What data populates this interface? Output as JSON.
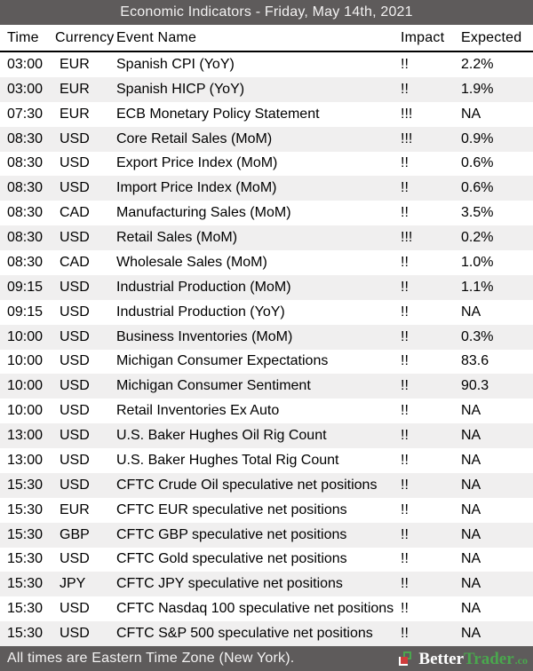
{
  "header": {
    "title": "Economic Indicators - Friday, May 14th, 2021"
  },
  "colors": {
    "bar_background": "#5e5b5b",
    "row_alt_background": "#f0efef",
    "header_divider": "#000000",
    "logo_green": "#4aa74e",
    "logo_red": "#cf3c3c"
  },
  "table": {
    "columns": [
      "Time",
      "Currency",
      "Event Name",
      "Impact",
      "Expected"
    ],
    "rows": [
      {
        "time": "03:00",
        "currency": "EUR",
        "event": "Spanish CPI (YoY)",
        "impact": "!!",
        "expected": "2.2%"
      },
      {
        "time": "03:00",
        "currency": "EUR",
        "event": "Spanish HICP (YoY)",
        "impact": "!!",
        "expected": "1.9%"
      },
      {
        "time": "07:30",
        "currency": "EUR",
        "event": "ECB Monetary Policy Statement",
        "impact": "!!!",
        "expected": "NA"
      },
      {
        "time": "08:30",
        "currency": "USD",
        "event": "Core Retail Sales (MoM)",
        "impact": "!!!",
        "expected": "0.9%"
      },
      {
        "time": "08:30",
        "currency": "USD",
        "event": "Export Price Index (MoM)",
        "impact": "!!",
        "expected": "0.6%"
      },
      {
        "time": "08:30",
        "currency": "USD",
        "event": "Import Price Index (MoM)",
        "impact": "!!",
        "expected": "0.6%"
      },
      {
        "time": "08:30",
        "currency": "CAD",
        "event": "Manufacturing Sales (MoM)",
        "impact": "!!",
        "expected": "3.5%"
      },
      {
        "time": "08:30",
        "currency": "USD",
        "event": "Retail Sales (MoM)",
        "impact": "!!!",
        "expected": "0.2%"
      },
      {
        "time": "08:30",
        "currency": "CAD",
        "event": "Wholesale Sales (MoM)",
        "impact": "!!",
        "expected": "1.0%"
      },
      {
        "time": "09:15",
        "currency": "USD",
        "event": "Industrial Production (MoM)",
        "impact": "!!",
        "expected": "1.1%"
      },
      {
        "time": "09:15",
        "currency": "USD",
        "event": "Industrial Production (YoY)",
        "impact": "!!",
        "expected": "NA"
      },
      {
        "time": "10:00",
        "currency": "USD",
        "event": "Business Inventories (MoM)",
        "impact": "!!",
        "expected": "0.3%"
      },
      {
        "time": "10:00",
        "currency": "USD",
        "event": "Michigan Consumer Expectations",
        "impact": "!!",
        "expected": "83.6"
      },
      {
        "time": "10:00",
        "currency": "USD",
        "event": "Michigan Consumer Sentiment",
        "impact": "!!",
        "expected": "90.3"
      },
      {
        "time": "10:00",
        "currency": "USD",
        "event": "Retail Inventories Ex Auto",
        "impact": "!!",
        "expected": "NA"
      },
      {
        "time": "13:00",
        "currency": "USD",
        "event": "U.S. Baker Hughes Oil Rig Count",
        "impact": "!!",
        "expected": "NA"
      },
      {
        "time": "13:00",
        "currency": "USD",
        "event": "U.S. Baker Hughes Total Rig Count",
        "impact": "!!",
        "expected": "NA"
      },
      {
        "time": "15:30",
        "currency": "USD",
        "event": "CFTC Crude Oil speculative net positions",
        "impact": "!!",
        "expected": "NA"
      },
      {
        "time": "15:30",
        "currency": "EUR",
        "event": "CFTC EUR speculative net positions",
        "impact": "!!",
        "expected": "NA"
      },
      {
        "time": "15:30",
        "currency": "GBP",
        "event": "CFTC GBP speculative net positions",
        "impact": "!!",
        "expected": "NA"
      },
      {
        "time": "15:30",
        "currency": "USD",
        "event": "CFTC Gold speculative net positions",
        "impact": "!!",
        "expected": "NA"
      },
      {
        "time": "15:30",
        "currency": "JPY",
        "event": "CFTC JPY speculative net positions",
        "impact": "!!",
        "expected": "NA"
      },
      {
        "time": "15:30",
        "currency": "USD",
        "event": "CFTC Nasdaq 100 speculative net positions",
        "impact": "!!",
        "expected": "NA"
      },
      {
        "time": "15:30",
        "currency": "USD",
        "event": "CFTC S&P 500 speculative net positions",
        "impact": "!!",
        "expected": "NA"
      }
    ]
  },
  "footer": {
    "note": "All times are Eastern Time Zone (New York).",
    "logo": {
      "brand_first": "Better",
      "brand_second": "Trader",
      "tld": ".co"
    }
  }
}
